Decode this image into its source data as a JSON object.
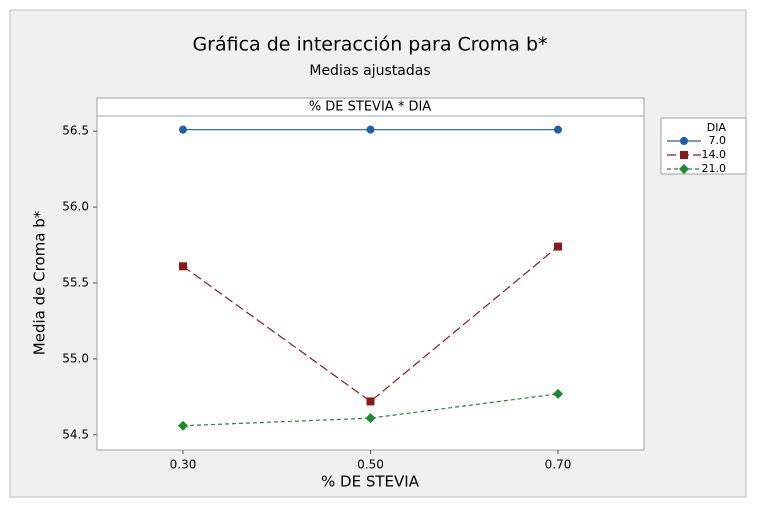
{
  "chart_data": {
    "type": "line",
    "title": "Gráfica de interacción para Croma b*",
    "subtitle": "Medias ajustadas",
    "panel_title": "% DE STEVIA * DIA",
    "x_label": "% DE STEVIA",
    "y_label": "Media de Croma b*",
    "legend_title": "DIA",
    "legend_position": "right",
    "categories": [
      "0.30",
      "0.50",
      "0.70"
    ],
    "ylim": [
      54.4,
      56.6
    ],
    "yticks": [
      54.5,
      {
        "value": 55,
        "label": "55.0"
      },
      55.5,
      {
        "value": 56,
        "label": "56.0"
      },
      56.5
    ],
    "series": [
      {
        "name": "7.0",
        "color": "#1f5fa8",
        "marker": "circle",
        "dash": "none",
        "values": [
          56.51,
          56.51,
          56.51
        ]
      },
      {
        "name": "14.0",
        "color": "#8b1a1a",
        "marker": "square",
        "dash": "9,4",
        "values": [
          55.61,
          54.72,
          55.74
        ]
      },
      {
        "name": "21.0",
        "color": "#1a8a2e",
        "marker": "diamond",
        "dash": "4,3",
        "values": [
          54.56,
          54.61,
          54.77
        ]
      }
    ]
  }
}
